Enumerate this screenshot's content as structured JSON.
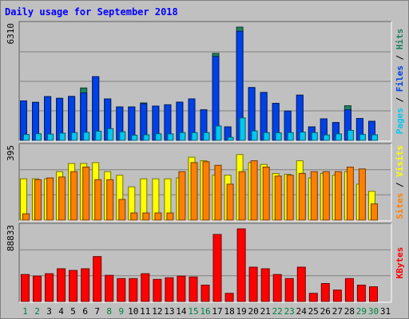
{
  "chart_data": {
    "type": "bar",
    "title": "Daily usage for September 2018",
    "days": [
      "1",
      "2",
      "3",
      "4",
      "5",
      "6",
      "7",
      "8",
      "9",
      "10",
      "11",
      "12",
      "13",
      "14",
      "15",
      "16",
      "17",
      "18",
      "19",
      "20",
      "21",
      "22",
      "23",
      "24",
      "25",
      "26",
      "27",
      "28",
      "29",
      "30",
      "31"
    ],
    "weekend_days": [
      1,
      2,
      8,
      9,
      15,
      16,
      22,
      23,
      29,
      30
    ],
    "panels": [
      {
        "id": "pages_files_hits",
        "max_label": "6310",
        "ymax": 6310,
        "legend": [
          {
            "label": "Pages",
            "color": "#00c8f0"
          },
          {
            "label": "Files",
            "color": "#0040e8"
          },
          {
            "label": "Hits",
            "color": "#208060"
          }
        ],
        "series": [
          {
            "name": "Hits",
            "color": "#208060",
            "values": [
              2200,
              2120,
              2440,
              2340,
              2450,
              2920,
              3550,
              2310,
              1860,
              1860,
              2090,
              1910,
              1980,
              2130,
              2310,
              1700,
              4850,
              750,
              6310,
              2940,
              2670,
              2060,
              1630,
              2520,
              750,
              1200,
              990,
              1930,
              1220,
              1060,
              0
            ]
          },
          {
            "name": "Files",
            "color": "#0040e8",
            "values": [
              2200,
              2120,
              2440,
              2340,
              2450,
              2640,
              3550,
              2310,
              1860,
              1860,
              2040,
              1910,
              1980,
              2130,
              2310,
              1700,
              4680,
              750,
              6080,
              2940,
              2670,
              2060,
              1630,
              2520,
              750,
              1200,
              990,
              1700,
              1220,
              1060,
              0
            ]
          },
          {
            "name": "Pages",
            "color": "#00c8f0",
            "values": [
              330,
              370,
              350,
              400,
              430,
              450,
              510,
              650,
              480,
              290,
              310,
              370,
              360,
              430,
              430,
              430,
              800,
              170,
              1250,
              530,
              430,
              420,
              430,
              460,
              430,
              300,
              360,
              560,
              330,
              310,
              0
            ]
          }
        ]
      },
      {
        "id": "visits_sites",
        "max_label": "395",
        "ymax": 395,
        "legend": [
          {
            "label": "Sites",
            "color": "#ff8000"
          },
          {
            "label": "Visits",
            "color": "#ffff00"
          }
        ],
        "series": [
          {
            "name": "Visits",
            "color": "#ffff00",
            "values": [
              230,
              230,
              230,
              270,
              315,
              315,
              320,
              270,
              250,
              185,
              230,
              230,
              230,
              235,
              350,
              330,
              250,
              250,
              365,
              320,
              310,
              260,
              255,
              330,
              235,
              260,
              250,
              270,
              200,
              160,
              0
            ]
          },
          {
            "name": "Sites",
            "color": "#ff8000",
            "values": [
              35,
              225,
              235,
              240,
              270,
              295,
              225,
              225,
              115,
              40,
              40,
              40,
              40,
              270,
              320,
              325,
              305,
              200,
              270,
              330,
              295,
              245,
              250,
              260,
              270,
              270,
              270,
              295,
              285,
              90,
              0
            ]
          }
        ]
      },
      {
        "id": "kbytes",
        "max_label": "88833",
        "ymax": 88833,
        "legend": [
          {
            "label": "KBytes",
            "color": "#ff0000"
          }
        ],
        "series": [
          {
            "name": "KBytes",
            "color": "#ff0000",
            "values": [
              33000,
              31000,
              34000,
              40000,
              38000,
              40000,
              55000,
              32000,
              28000,
              28000,
              34000,
              27000,
              29000,
              31000,
              30000,
              20000,
              82000,
              10000,
              88833,
              42000,
              40000,
              33000,
              28000,
              42000,
              10000,
              22000,
              14000,
              28000,
              20000,
              18000,
              0
            ]
          }
        ]
      }
    ],
    "colors": {
      "background": "#c0c0c0",
      "title": "#0000ff",
      "weekend_label": "#008040",
      "weekday_label": "#000000",
      "gridline": "#808080"
    }
  }
}
